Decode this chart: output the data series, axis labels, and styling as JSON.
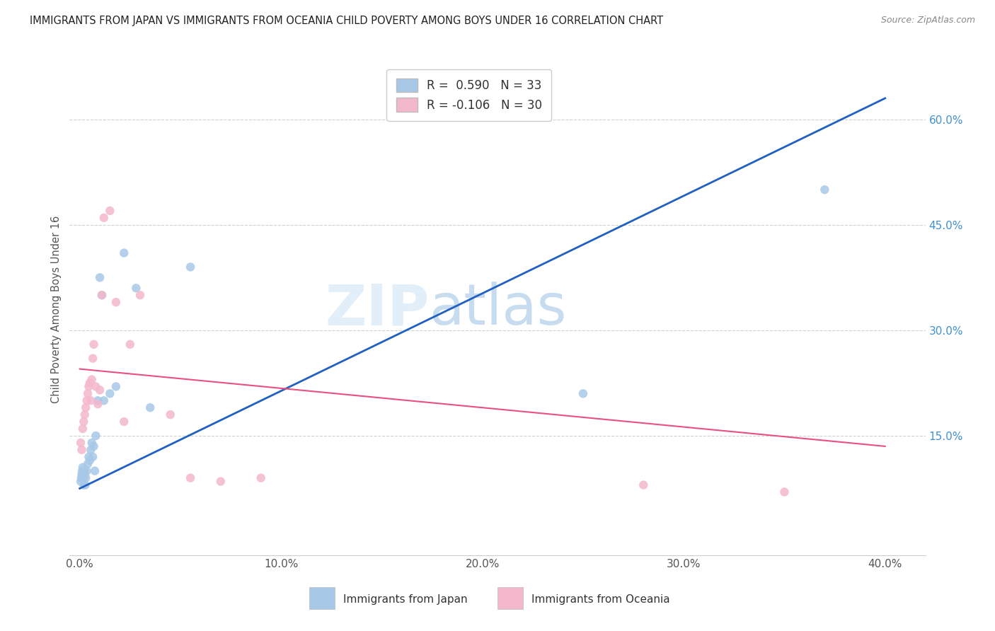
{
  "title": "IMMIGRANTS FROM JAPAN VS IMMIGRANTS FROM OCEANIA CHILD POVERTY AMONG BOYS UNDER 16 CORRELATION CHART",
  "source": "Source: ZipAtlas.com",
  "ylabel": "Child Poverty Among Boys Under 16",
  "x_tick_labels": [
    "0.0%",
    "10.0%",
    "20.0%",
    "30.0%",
    "40.0%"
  ],
  "x_tick_vals": [
    0.0,
    10.0,
    20.0,
    30.0,
    40.0
  ],
  "y_tick_labels_right": [
    "15.0%",
    "30.0%",
    "45.0%",
    "60.0%"
  ],
  "y_tick_vals_right": [
    15.0,
    30.0,
    45.0,
    60.0
  ],
  "xlim": [
    -0.5,
    42.0
  ],
  "ylim": [
    -2.0,
    68.0
  ],
  "legend_r_japan": "0.590",
  "legend_n_japan": "33",
  "legend_r_oceania": "-0.106",
  "legend_n_oceania": "30",
  "legend_label_japan": "Immigrants from Japan",
  "legend_label_oceania": "Immigrants from Oceania",
  "color_japan": "#a8c8e8",
  "color_oceania": "#f4b8cc",
  "color_japan_line": "#2060c0",
  "color_oceania_line": "#e85080",
  "color_title": "#222222",
  "color_right_axis": "#4090d0",
  "color_source": "#888888",
  "watermark_zip": "ZIP",
  "watermark_atlas": "atlas",
  "background_color": "#ffffff",
  "japan_x": [
    0.05,
    0.08,
    0.1,
    0.12,
    0.15,
    0.18,
    0.2,
    0.22,
    0.25,
    0.28,
    0.3,
    0.35,
    0.4,
    0.45,
    0.5,
    0.55,
    0.6,
    0.65,
    0.7,
    0.75,
    0.8,
    0.9,
    1.0,
    1.1,
    1.2,
    1.5,
    1.8,
    2.2,
    2.8,
    3.5,
    5.5,
    25.0,
    37.0
  ],
  "japan_y": [
    8.5,
    9.0,
    9.5,
    10.0,
    10.5,
    9.0,
    8.0,
    10.0,
    9.5,
    8.0,
    9.0,
    10.0,
    11.0,
    12.0,
    11.5,
    13.0,
    14.0,
    12.0,
    13.5,
    10.0,
    15.0,
    20.0,
    37.5,
    35.0,
    20.0,
    21.0,
    22.0,
    41.0,
    36.0,
    19.0,
    39.0,
    21.0,
    50.0
  ],
  "oceania_x": [
    0.05,
    0.1,
    0.15,
    0.2,
    0.25,
    0.3,
    0.35,
    0.4,
    0.45,
    0.5,
    0.55,
    0.6,
    0.65,
    0.7,
    0.8,
    0.9,
    1.0,
    1.1,
    1.2,
    1.5,
    1.8,
    2.2,
    2.5,
    3.0,
    4.5,
    5.5,
    7.0,
    9.0,
    28.0,
    35.0
  ],
  "oceania_y": [
    14.0,
    13.0,
    16.0,
    17.0,
    18.0,
    19.0,
    20.0,
    21.0,
    22.0,
    22.5,
    20.0,
    23.0,
    26.0,
    28.0,
    22.0,
    19.5,
    21.5,
    35.0,
    46.0,
    47.0,
    34.0,
    17.0,
    28.0,
    35.0,
    18.0,
    9.0,
    8.5,
    9.0,
    8.0,
    7.0
  ],
  "japan_line_x": [
    0.0,
    40.0
  ],
  "japan_line_y": [
    7.5,
    63.0
  ],
  "oceania_line_x": [
    0.0,
    40.0
  ],
  "oceania_line_y": [
    24.5,
    13.5
  ],
  "dot_size": 80,
  "grid_color": "#d0d0d0",
  "grid_style": "--"
}
